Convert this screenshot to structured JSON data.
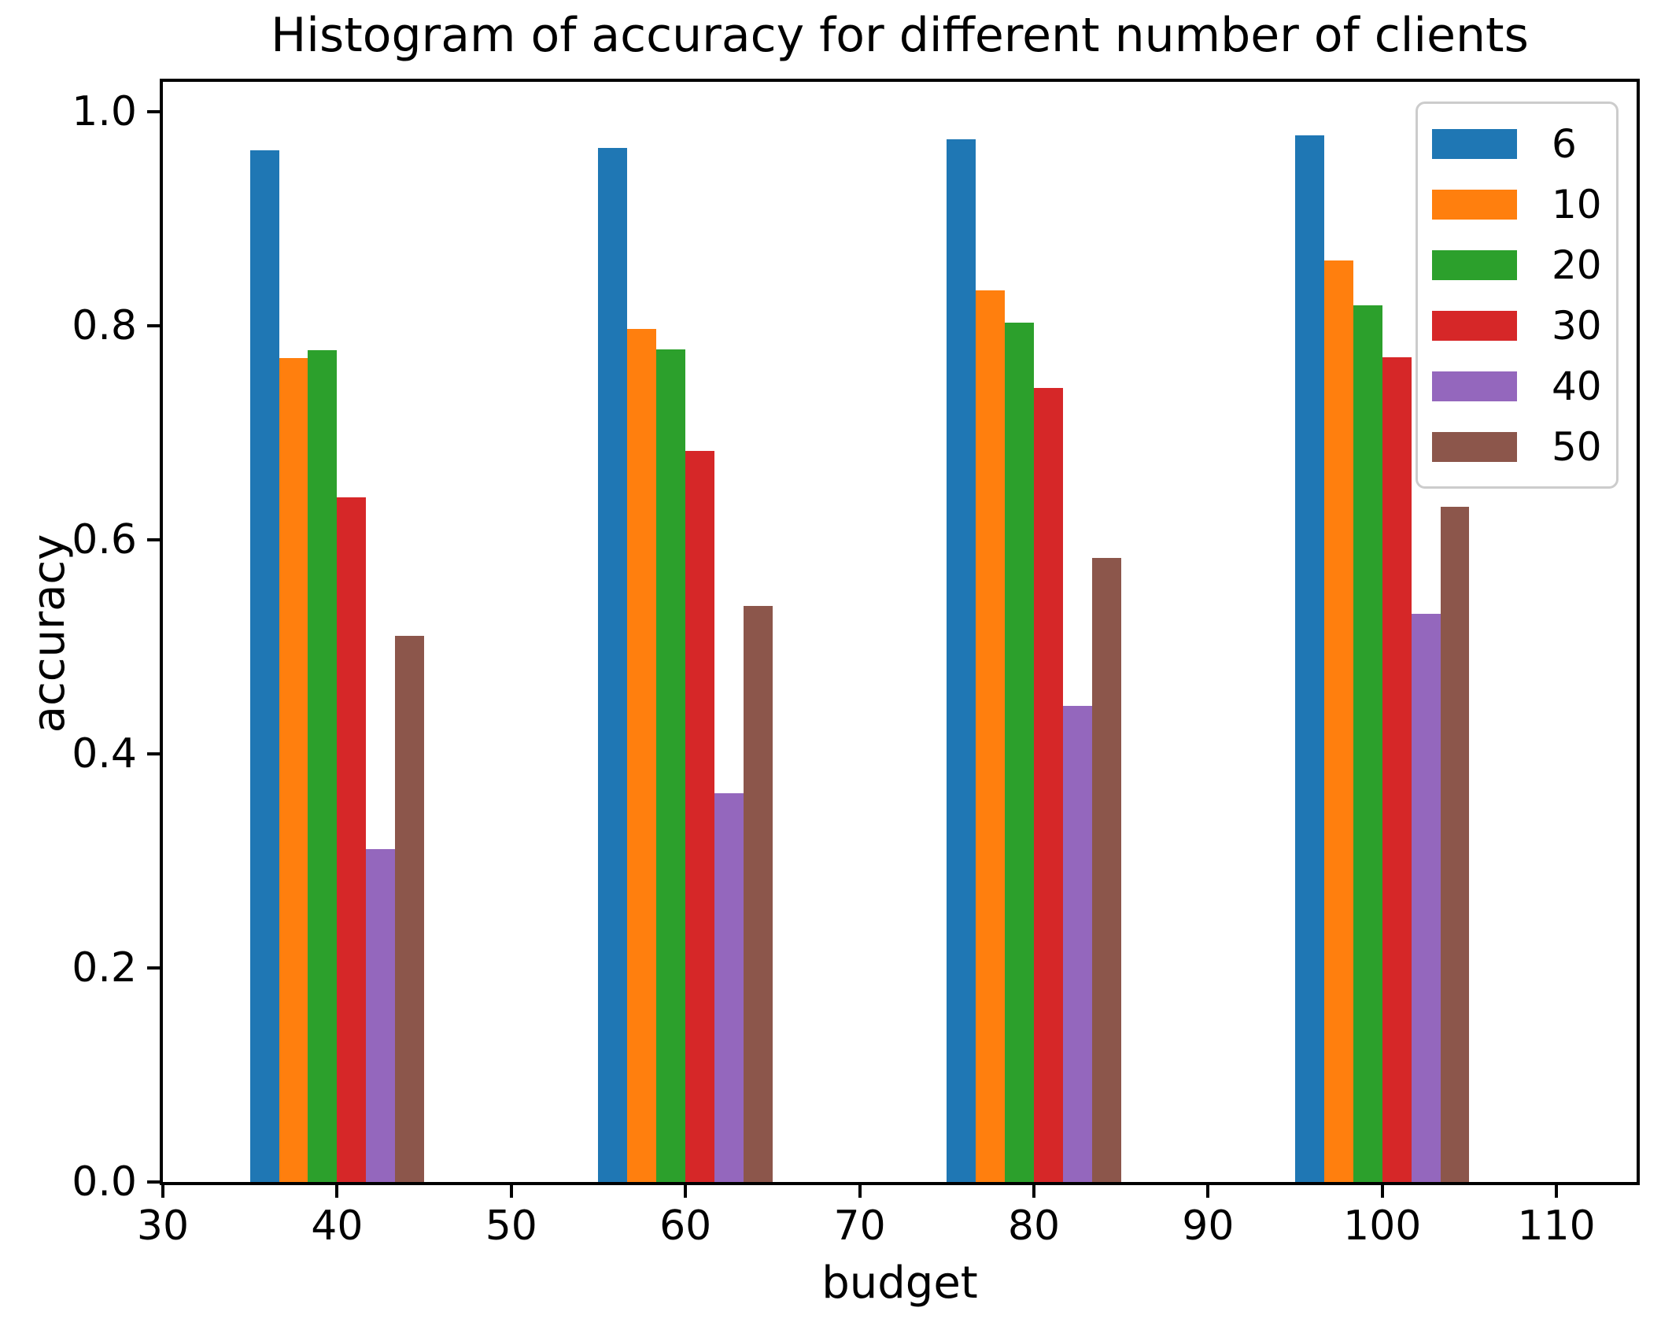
{
  "chart_data": {
    "type": "bar",
    "title": "Histogram of accuracy for different number of clients",
    "xlabel": "budget",
    "ylabel": "accuracy",
    "categories": [
      40,
      60,
      80,
      100
    ],
    "group_width": 10,
    "series": [
      {
        "name": "6",
        "color": "#1f77b4",
        "values": [
          0.964,
          0.966,
          0.974,
          0.978
        ]
      },
      {
        "name": "10",
        "color": "#ff7f0e",
        "values": [
          0.77,
          0.797,
          0.833,
          0.861
        ]
      },
      {
        "name": "20",
        "color": "#2ca02c",
        "values": [
          0.777,
          0.778,
          0.803,
          0.819
        ]
      },
      {
        "name": "30",
        "color": "#d62728",
        "values": [
          0.64,
          0.683,
          0.742,
          0.771
        ]
      },
      {
        "name": "40",
        "color": "#9467bd",
        "values": [
          0.311,
          0.363,
          0.445,
          0.531
        ]
      },
      {
        "name": "50",
        "color": "#8c564b",
        "values": [
          0.51,
          0.538,
          0.583,
          0.631
        ]
      }
    ],
    "xlim": [
      30,
      114.6
    ],
    "ylim": [
      0,
      1.028
    ],
    "xticks": [
      30,
      40,
      50,
      60,
      70,
      80,
      90,
      100,
      110
    ],
    "xtick_labels": [
      "30",
      "40",
      "50",
      "60",
      "70",
      "80",
      "90",
      "100",
      "110"
    ],
    "yticks": [
      0.0,
      0.2,
      0.4,
      0.6,
      0.8,
      1.0
    ],
    "ytick_labels": [
      "0.0",
      "0.2",
      "0.4",
      "0.6",
      "0.8",
      "1.0"
    ],
    "legend": {
      "position": "upper right",
      "labels": [
        "6",
        "10",
        "20",
        "30",
        "40",
        "50"
      ]
    },
    "grid": false,
    "axis_color": "#000000",
    "background_color": "#ffffff"
  }
}
